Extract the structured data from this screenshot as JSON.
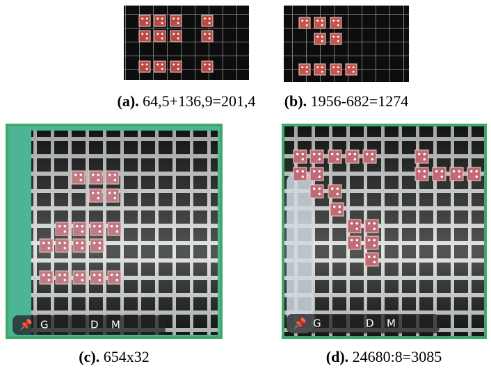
{
  "panels": [
    {
      "label": "(a).",
      "caption": "64,5+136,9=201,4"
    },
    {
      "label": "(b).",
      "caption": "1956-682=1274"
    },
    {
      "label": "(c).",
      "caption": "654x32",
      "overlay": [
        "G",
        "D",
        "M"
      ]
    },
    {
      "label": "(d).",
      "caption": "24680:8=3085",
      "overlay": [
        "G",
        "D",
        "M"
      ]
    }
  ]
}
